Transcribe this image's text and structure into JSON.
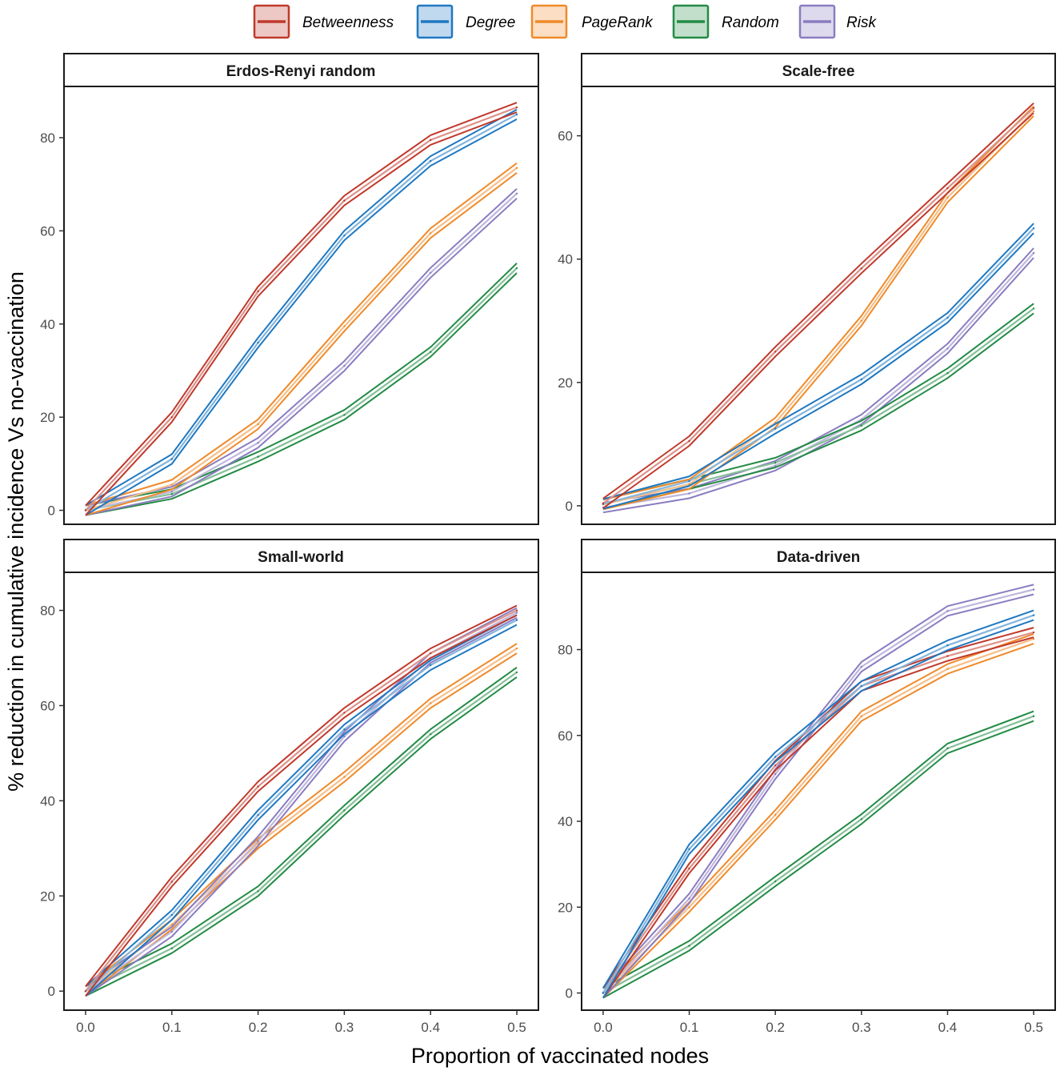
{
  "chart_data": {
    "type": "line",
    "xlabel": "Proportion of vaccinated nodes",
    "ylabel": "% reduction in cumulative incidence Vs no-vaccination",
    "x": [
      0.0,
      0.1,
      0.2,
      0.3,
      0.4,
      0.5
    ],
    "x_tick_labels": [
      "0.0",
      "0.1",
      "0.2",
      "0.3",
      "0.4",
      "0.5"
    ],
    "xlim": [
      -0.025,
      0.525
    ],
    "legend_position": "top",
    "legend": [
      {
        "name": "Betweenness",
        "color": "#c0392b"
      },
      {
        "name": "Degree",
        "color": "#1f78c1"
      },
      {
        "name": "PageRank",
        "color": "#ef8a2a"
      },
      {
        "name": "Random",
        "color": "#238b45"
      },
      {
        "name": "Risk",
        "color": "#8a7cc0"
      }
    ],
    "panels": [
      {
        "title": "Erdos-Renyi random",
        "ylim": [
          -3,
          91
        ],
        "y_ticks": [
          0,
          20,
          40,
          60,
          80
        ],
        "y_tick_labels": [
          "0",
          "20",
          "40",
          "60",
          "80"
        ],
        "series": [
          {
            "name": "Random",
            "values": [
              0,
              3.5,
              11.5,
              20.5,
              34,
              52
            ]
          },
          {
            "name": "Risk",
            "values": [
              0,
              4,
              14.5,
              31,
              51,
              68
            ]
          },
          {
            "name": "PageRank",
            "values": [
              0,
              5.5,
              18.5,
              39.5,
              59.5,
              73.5
            ]
          },
          {
            "name": "Degree",
            "values": [
              0,
              11,
              36,
              59,
              75,
              85
            ]
          },
          {
            "name": "Betweenness",
            "values": [
              0,
              20,
              47,
              66.5,
              79.5,
              86.5
            ]
          }
        ]
      },
      {
        "title": "Scale-free",
        "ylim": [
          -3,
          68
        ],
        "y_ticks": [
          0,
          20,
          40,
          60
        ],
        "y_tick_labels": [
          "0",
          "20",
          "40",
          "60"
        ],
        "series": [
          {
            "name": "Risk",
            "values": [
              -0.3,
              2,
              6.5,
              14,
              25.5,
              41
            ]
          },
          {
            "name": "Random",
            "values": [
              0.3,
              3.5,
              7,
              13,
              21.5,
              32
            ]
          },
          {
            "name": "PageRank",
            "values": [
              0.2,
              3.5,
              13.5,
              30,
              50,
              64
            ]
          },
          {
            "name": "Degree",
            "values": [
              0.3,
              4,
              12.5,
              20.5,
              30.5,
              45
            ]
          },
          {
            "name": "Betweenness",
            "values": [
              0.4,
              10.5,
              25,
              38.5,
              51.5,
              64.5
            ]
          }
        ]
      },
      {
        "title": "Small-world",
        "ylim": [
          -4,
          88
        ],
        "y_ticks": [
          0,
          20,
          40,
          60,
          80
        ],
        "y_tick_labels": [
          "0",
          "20",
          "40",
          "60",
          "80"
        ],
        "series": [
          {
            "name": "Random",
            "values": [
              0,
              9,
              21,
              38,
              54,
              67
            ]
          },
          {
            "name": "PageRank",
            "values": [
              0,
              14,
              31,
              45,
              60.5,
              72
            ]
          },
          {
            "name": "Risk",
            "values": [
              0,
              12.5,
              31.5,
              53.5,
              70,
              79.5
            ]
          },
          {
            "name": "Degree",
            "values": [
              0,
              16,
              37,
              55,
              68.5,
              78
            ]
          },
          {
            "name": "Betweenness",
            "values": [
              0,
              23,
              43,
              58.5,
              71,
              80
            ]
          }
        ]
      },
      {
        "title": "Data-driven",
        "ylim": [
          -4,
          98
        ],
        "y_ticks": [
          0,
          20,
          40,
          60,
          80
        ],
        "y_tick_labels": [
          "0",
          "20",
          "40",
          "60",
          "80"
        ],
        "series": [
          {
            "name": "Random",
            "values": [
              0,
              11,
              26,
              40.5,
              57,
              64.5
            ]
          },
          {
            "name": "PageRank",
            "values": [
              0,
              20,
              41.5,
              64.5,
              75.5,
              82.5
            ]
          },
          {
            "name": "Risk",
            "values": [
              0,
              22,
              51,
              76,
              89,
              94
            ]
          },
          {
            "name": "Betweenness",
            "values": [
              0,
              29,
              53,
              71.5,
              78.5,
              84
            ]
          },
          {
            "name": "Degree",
            "values": [
              0,
              33.5,
              55,
              71.5,
              81,
              88
            ]
          }
        ]
      }
    ]
  }
}
